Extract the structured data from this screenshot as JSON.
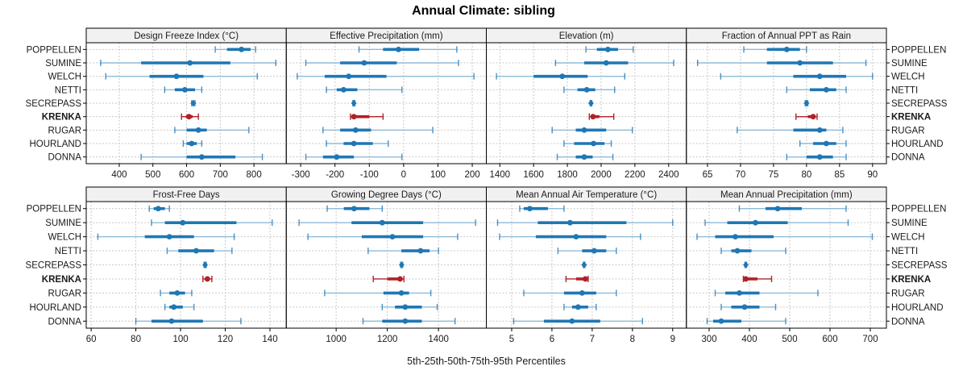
{
  "title": "Annual Climate: sibling",
  "footer": "5th-25th-50th-75th-95th Percentiles",
  "colors": {
    "series_blue": "#1f77b4",
    "series_blue_light": "#8fbbd9",
    "highlight_red": "#b02126",
    "grid": "#c9c9c9",
    "strip_bg": "#f1f1f1",
    "border": "#000000"
  },
  "chart_data": {
    "type": "table",
    "subtype": "trellis-percentile-interval-dotplot",
    "percentiles": [
      5,
      25,
      50,
      75,
      95
    ],
    "stations": [
      "POPPELLEN",
      "SUMINE",
      "WELCH",
      "NETTI",
      "SECREPASS",
      "KRENKA",
      "RUGAR",
      "HOURLAND",
      "DONNA"
    ],
    "highlight_station": "KRENKA",
    "diamond_marker_station": "SECREPASS",
    "legend_position": "none",
    "grid": "dashed",
    "panels": [
      {
        "title": "Design Freeze Index (°C)",
        "row": 0,
        "col": 0,
        "domain": [
          302,
          896
        ],
        "ticks": [
          400,
          500,
          600,
          700,
          800
        ],
        "values": [
          [
            685,
            720,
            763,
            790,
            805
          ],
          [
            345,
            465,
            610,
            730,
            865
          ],
          [
            360,
            490,
            570,
            650,
            810
          ],
          [
            535,
            565,
            595,
            625,
            645
          ],
          [
            615,
            618,
            620,
            622,
            625
          ],
          [
            585,
            598,
            607,
            618,
            635
          ],
          [
            565,
            600,
            635,
            660,
            785
          ],
          [
            590,
            600,
            615,
            630,
            645
          ],
          [
            465,
            600,
            645,
            745,
            825
          ]
        ]
      },
      {
        "title": "Effective Precipitation (mm)",
        "row": 0,
        "col": 1,
        "domain": [
          -342,
          241
        ],
        "ticks": [
          -300,
          -200,
          -100,
          0,
          100,
          200
        ],
        "values": [
          [
            -130,
            -60,
            -15,
            45,
            155
          ],
          [
            -285,
            -185,
            -115,
            -20,
            160
          ],
          [
            -310,
            -230,
            -160,
            -50,
            205
          ],
          [
            -225,
            -195,
            -175,
            -135,
            -5
          ],
          [
            -148,
            -146,
            -145,
            -144,
            -142
          ],
          [
            -155,
            -150,
            -145,
            -100,
            -60
          ],
          [
            -235,
            -185,
            -140,
            -95,
            85
          ],
          [
            -225,
            -175,
            -145,
            -90,
            -45
          ],
          [
            -285,
            -235,
            -195,
            -145,
            -5
          ]
        ]
      },
      {
        "title": "Elevation (m)",
        "row": 0,
        "col": 2,
        "domain": [
          1320,
          2505
        ],
        "ticks": [
          1400,
          1600,
          1800,
          2000,
          2200,
          2400
        ],
        "values": [
          [
            1910,
            1975,
            2040,
            2100,
            2190
          ],
          [
            1730,
            1900,
            2030,
            2160,
            2430
          ],
          [
            1380,
            1600,
            1770,
            1920,
            2140
          ],
          [
            1780,
            1860,
            1915,
            1965,
            2080
          ],
          [
            1935,
            1938,
            1940,
            1942,
            1945
          ],
          [
            1930,
            1945,
            1952,
            1990,
            2075
          ],
          [
            1710,
            1850,
            1900,
            2030,
            2185
          ],
          [
            1780,
            1840,
            1955,
            2020,
            2060
          ],
          [
            1740,
            1850,
            1900,
            1950,
            2070
          ]
        ]
      },
      {
        "title": "Fraction of Annual PPT as Rain",
        "row": 0,
        "col": 3,
        "domain": [
          61.8,
          92.1
        ],
        "ticks": [
          65,
          70,
          75,
          80,
          85,
          90
        ],
        "values": [
          [
            70.5,
            74,
            77,
            79,
            80
          ],
          [
            63.5,
            74,
            79,
            84,
            89
          ],
          [
            67,
            78,
            82,
            86,
            90
          ],
          [
            77,
            80.5,
            83,
            84.5,
            86
          ],
          [
            79.8,
            79.9,
            80,
            80.1,
            80.2
          ],
          [
            78.4,
            80.2,
            81,
            81.2,
            81.6
          ],
          [
            69.5,
            78,
            82,
            83,
            85.5
          ],
          [
            79,
            81,
            83,
            84.5,
            86
          ],
          [
            77,
            80,
            82,
            84,
            86
          ]
        ]
      },
      {
        "title": "Frost-Free Days",
        "row": 1,
        "col": 0,
        "domain": [
          57.8,
          147.3
        ],
        "ticks": [
          60,
          80,
          100,
          120,
          140
        ],
        "values": [
          [
            86,
            88,
            90,
            93,
            95
          ],
          [
            87,
            93,
            101,
            125,
            141
          ],
          [
            63,
            84,
            95,
            106,
            124
          ],
          [
            94,
            99,
            107,
            115,
            123
          ],
          [
            110.5,
            110.8,
            111,
            111.2,
            111.5
          ],
          [
            110,
            111,
            112,
            113,
            114
          ],
          [
            91,
            95,
            98.5,
            102,
            105
          ],
          [
            93,
            95,
            97,
            101,
            106
          ],
          [
            80,
            87,
            96,
            110,
            127
          ]
        ]
      },
      {
        "title": "Growing Degree Days (°C)",
        "row": 1,
        "col": 1,
        "domain": [
          805,
          1587
        ],
        "ticks": [
          1000,
          1200,
          1400
        ],
        "values": [
          [
            965,
            1030,
            1070,
            1130,
            1180
          ],
          [
            855,
            1060,
            1180,
            1340,
            1545
          ],
          [
            890,
            1100,
            1220,
            1340,
            1475
          ],
          [
            1125,
            1255,
            1330,
            1365,
            1400
          ],
          [
            1252,
            1254,
            1256,
            1258,
            1260
          ],
          [
            1145,
            1200,
            1250,
            1258,
            1265
          ],
          [
            955,
            1185,
            1255,
            1285,
            1370
          ],
          [
            1180,
            1230,
            1270,
            1335,
            1395
          ],
          [
            1105,
            1180,
            1270,
            1335,
            1465
          ]
        ]
      },
      {
        "title": "Mean Annual Air Temperature (°C)",
        "row": 1,
        "col": 2,
        "domain": [
          4.37,
          9.34
        ],
        "ticks": [
          5,
          6,
          7,
          8,
          9
        ],
        "values": [
          [
            5.2,
            5.3,
            5.45,
            5.9,
            6.3
          ],
          [
            4.65,
            5.65,
            6.45,
            7.85,
            9.0
          ],
          [
            4.7,
            5.6,
            6.6,
            7.35,
            8.2
          ],
          [
            6.15,
            6.75,
            7.05,
            7.35,
            7.6
          ],
          [
            6.78,
            6.79,
            6.8,
            6.81,
            6.82
          ],
          [
            6.35,
            6.6,
            6.83,
            6.87,
            6.9
          ],
          [
            5.3,
            6.3,
            6.75,
            7.1,
            7.6
          ],
          [
            6.3,
            6.5,
            6.65,
            6.9,
            7.1
          ],
          [
            5.05,
            5.8,
            6.5,
            7.2,
            8.25
          ]
        ]
      },
      {
        "title": "Mean Annual Precipitation (mm)",
        "row": 1,
        "col": 3,
        "domain": [
          243.5,
          740
        ],
        "ticks": [
          300,
          400,
          500,
          600,
          700
        ],
        "values": [
          [
            375,
            440,
            470,
            530,
            640
          ],
          [
            290,
            345,
            415,
            495,
            645
          ],
          [
            270,
            315,
            365,
            460,
            705
          ],
          [
            330,
            355,
            370,
            405,
            490
          ],
          [
            389,
            390,
            391,
            392,
            393
          ],
          [
            385,
            388,
            391,
            420,
            455
          ],
          [
            315,
            340,
            375,
            425,
            570
          ],
          [
            330,
            355,
            388,
            425,
            465
          ],
          [
            295,
            310,
            330,
            380,
            490
          ]
        ]
      }
    ]
  }
}
